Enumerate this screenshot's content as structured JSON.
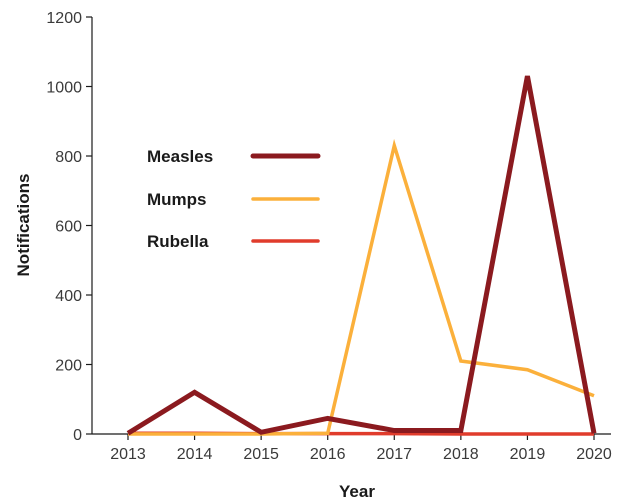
{
  "chart_data": {
    "type": "line",
    "title": "",
    "xlabel": "Year",
    "ylabel": "Notifications",
    "categories": [
      "2013",
      "2014",
      "2015",
      "2016",
      "2017",
      "2018",
      "2019",
      "2020"
    ],
    "ylim": [
      0,
      1200
    ],
    "yticks": [
      "0",
      "200",
      "400",
      "600",
      "800",
      "1000",
      "1200"
    ],
    "grid": false,
    "legend_position": "upper-left",
    "series": [
      {
        "name": "Measles",
        "color": "#8b1a1f",
        "values": [
          2,
          120,
          5,
          45,
          10,
          10,
          1030,
          2
        ]
      },
      {
        "name": "Mumps",
        "color": "#fbb03b",
        "values": [
          0,
          0,
          0,
          2,
          830,
          210,
          185,
          110
        ]
      },
      {
        "name": "Rubella",
        "color": "#e03c2c",
        "values": [
          2,
          2,
          1,
          1,
          1,
          0,
          0,
          0
        ]
      }
    ]
  }
}
